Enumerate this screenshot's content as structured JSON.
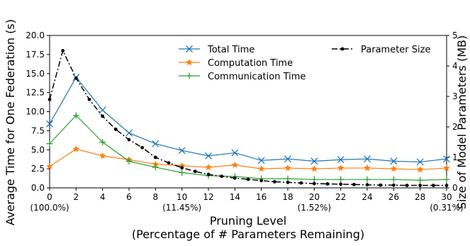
{
  "chart_data": {
    "type": "line",
    "x": [
      0,
      2,
      4,
      6,
      8,
      10,
      12,
      14,
      16,
      18,
      20,
      22,
      24,
      26,
      28,
      30
    ],
    "x_ticks": [
      0,
      2,
      4,
      6,
      8,
      10,
      12,
      14,
      16,
      18,
      20,
      22,
      24,
      26,
      28,
      30
    ],
    "x_sub_labels": [
      {
        "x": 0,
        "label": "(100.0%)"
      },
      {
        "x": 10,
        "label": "(11.45%)"
      },
      {
        "x": 20,
        "label": "(1.52%)"
      },
      {
        "x": 30,
        "label": "(0.31%)"
      }
    ],
    "xlim": [
      0,
      30
    ],
    "xlabel": "Pruning Level",
    "xlabel2": "(Percentage of # Parameters Remaining)",
    "ylabel_left": "Average Time for One Federation (s)",
    "ylim_left": [
      0,
      20
    ],
    "yticks_left": [
      "0.0",
      "2.5",
      "5.0",
      "7.5",
      "10.0",
      "12.5",
      "15.0",
      "17.5",
      "20.0"
    ],
    "ylabel_right": "Size of Model Parameters (MB)",
    "ylim_right": [
      0,
      5
    ],
    "yticks_right": [
      "0",
      "1",
      "2",
      "3",
      "4",
      "5"
    ],
    "grid": false,
    "legend_placement": "top",
    "series": [
      {
        "name": "Total Time",
        "axis": "left",
        "marker": "x",
        "color": "#1f77b4",
        "values": [
          8.4,
          14.5,
          10.2,
          7.2,
          5.8,
          4.9,
          4.2,
          4.6,
          3.6,
          3.8,
          3.5,
          3.7,
          3.8,
          3.5,
          3.4,
          3.8
        ]
      },
      {
        "name": "Computation Time",
        "axis": "left",
        "marker": "star",
        "color": "#ff7f0e",
        "values": [
          2.8,
          5.1,
          4.2,
          3.7,
          3.1,
          2.9,
          2.7,
          3.0,
          2.5,
          2.6,
          2.5,
          2.6,
          2.6,
          2.5,
          2.4,
          2.6
        ]
      },
      {
        "name": "Communication Time",
        "axis": "left",
        "marker": "plus",
        "color": "#2ca02c",
        "values": [
          5.8,
          9.5,
          6.0,
          3.5,
          2.7,
          2.0,
          1.6,
          1.5,
          1.2,
          1.2,
          1.1,
          1.1,
          1.1,
          1.1,
          1.0,
          1.1
        ]
      },
      {
        "name": "Parameter Size",
        "axis": "right",
        "marker": "dot",
        "color": "#000000",
        "x": [
          0,
          1,
          2,
          3,
          4,
          5,
          6,
          7,
          8,
          9,
          10,
          11,
          12,
          13,
          14,
          15,
          16,
          17,
          18,
          19,
          20,
          21,
          22,
          23,
          24,
          25,
          26,
          27,
          28,
          29,
          30
        ],
        "values": [
          2.9,
          4.5,
          3.6,
          2.9,
          2.35,
          1.92,
          1.58,
          1.32,
          1.0,
          0.82,
          0.66,
          0.54,
          0.44,
          0.38,
          0.32,
          0.28,
          0.24,
          0.2,
          0.18,
          0.16,
          0.14,
          0.13,
          0.12,
          0.11,
          0.1,
          0.09,
          0.09,
          0.08,
          0.08,
          0.08,
          0.08
        ]
      }
    ]
  }
}
